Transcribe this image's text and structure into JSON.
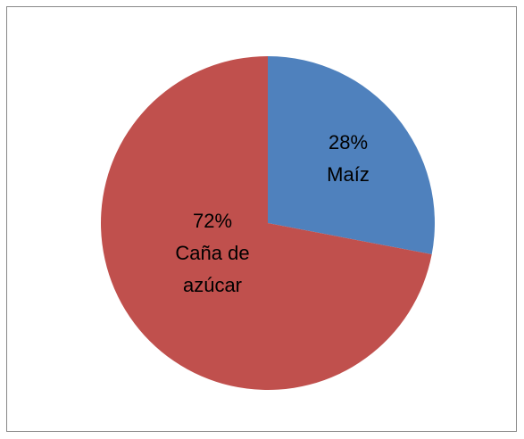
{
  "chart_data": {
    "type": "pie",
    "categories": [
      "Maíz",
      "Caña de azúcar"
    ],
    "values": [
      28,
      72
    ],
    "value_labels": [
      "28%",
      "72%"
    ],
    "colors": [
      "#4f81bd",
      "#c0504d"
    ]
  }
}
